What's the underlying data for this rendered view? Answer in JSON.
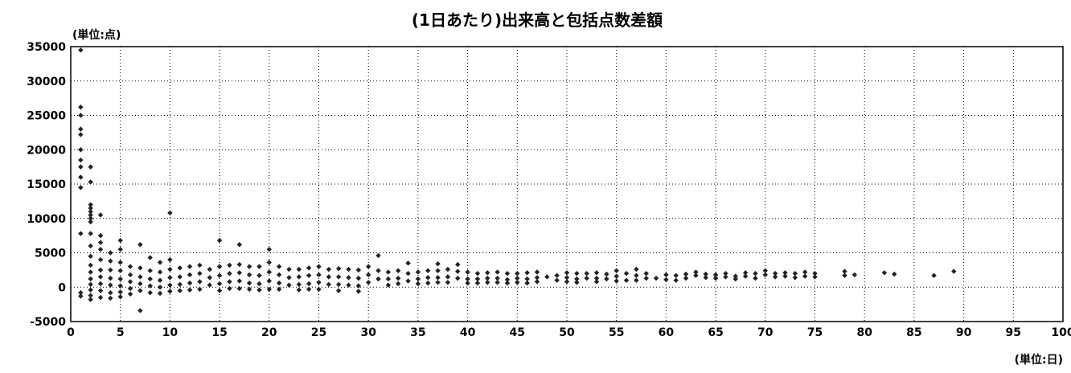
{
  "chart_data": {
    "type": "scatter",
    "title": "(1日あたり)出来高と包括点数差額",
    "y_unit_label": "(単位:点)",
    "x_unit_label": "(単位:日)",
    "xlim": [
      0,
      100
    ],
    "ylim": [
      -5000,
      35000
    ],
    "x_ticks": [
      0,
      5,
      10,
      15,
      20,
      25,
      30,
      35,
      40,
      45,
      50,
      55,
      60,
      65,
      70,
      75,
      80,
      85,
      90,
      95,
      100
    ],
    "y_ticks": [
      35000,
      30000,
      25000,
      20000,
      15000,
      10000,
      5000,
      0,
      -5000
    ],
    "grid": true,
    "marker_color": "#222222",
    "points": [
      [
        1,
        34500
      ],
      [
        1,
        26200
      ],
      [
        1,
        25000
      ],
      [
        1,
        23000
      ],
      [
        1,
        22200
      ],
      [
        1,
        20000
      ],
      [
        1,
        18500
      ],
      [
        1,
        17500
      ],
      [
        1,
        16000
      ],
      [
        1,
        14500
      ],
      [
        1,
        7800
      ],
      [
        1,
        -800
      ],
      [
        1,
        -1300
      ],
      [
        2,
        17500
      ],
      [
        2,
        15300
      ],
      [
        2,
        12000
      ],
      [
        2,
        11500
      ],
      [
        2,
        11000
      ],
      [
        2,
        10500
      ],
      [
        2,
        10000
      ],
      [
        2,
        9500
      ],
      [
        2,
        7800
      ],
      [
        2,
        6000
      ],
      [
        2,
        4500
      ],
      [
        2,
        3200
      ],
      [
        2,
        2200
      ],
      [
        2,
        1200
      ],
      [
        2,
        400
      ],
      [
        2,
        -400
      ],
      [
        2,
        -1200
      ],
      [
        2,
        -1800
      ],
      [
        3,
        10500
      ],
      [
        3,
        7500
      ],
      [
        3,
        6500
      ],
      [
        3,
        5500
      ],
      [
        3,
        4000
      ],
      [
        3,
        2500
      ],
      [
        3,
        1500
      ],
      [
        3,
        500
      ],
      [
        3,
        -500
      ],
      [
        3,
        -1500
      ],
      [
        4,
        5000
      ],
      [
        4,
        3800
      ],
      [
        4,
        2500
      ],
      [
        4,
        1300
      ],
      [
        4,
        300
      ],
      [
        4,
        -800
      ],
      [
        4,
        -1600
      ],
      [
        5,
        6800
      ],
      [
        5,
        5500
      ],
      [
        5,
        3600
      ],
      [
        5,
        2400
      ],
      [
        5,
        1200
      ],
      [
        5,
        200
      ],
      [
        5,
        -700
      ],
      [
        5,
        -1400
      ],
      [
        6,
        3000
      ],
      [
        6,
        1800
      ],
      [
        6,
        800
      ],
      [
        6,
        -200
      ],
      [
        6,
        -1000
      ],
      [
        7,
        6200
      ],
      [
        7,
        2800
      ],
      [
        7,
        1500
      ],
      [
        7,
        500
      ],
      [
        7,
        -500
      ],
      [
        7,
        -3400
      ],
      [
        8,
        4300
      ],
      [
        8,
        2400
      ],
      [
        8,
        1200
      ],
      [
        8,
        200
      ],
      [
        8,
        -800
      ],
      [
        9,
        3600
      ],
      [
        9,
        2200
      ],
      [
        9,
        1000
      ],
      [
        9,
        0
      ],
      [
        9,
        -900
      ],
      [
        10,
        10800
      ],
      [
        10,
        4000
      ],
      [
        10,
        2600
      ],
      [
        10,
        1400
      ],
      [
        10,
        300
      ],
      [
        10,
        -600
      ],
      [
        11,
        2800
      ],
      [
        11,
        1500
      ],
      [
        11,
        400
      ],
      [
        11,
        -500
      ],
      [
        12,
        3000
      ],
      [
        12,
        1800
      ],
      [
        12,
        600
      ],
      [
        12,
        -400
      ],
      [
        13,
        3200
      ],
      [
        13,
        2000
      ],
      [
        13,
        800
      ],
      [
        13,
        -300
      ],
      [
        14,
        2600
      ],
      [
        14,
        1400
      ],
      [
        14,
        300
      ],
      [
        15,
        6800
      ],
      [
        15,
        3000
      ],
      [
        15,
        1700
      ],
      [
        15,
        500
      ],
      [
        15,
        -500
      ],
      [
        16,
        3200
      ],
      [
        16,
        2000
      ],
      [
        16,
        800
      ],
      [
        16,
        -200
      ],
      [
        17,
        6200
      ],
      [
        17,
        3300
      ],
      [
        17,
        2100
      ],
      [
        17,
        900
      ],
      [
        17,
        -200
      ],
      [
        18,
        3000
      ],
      [
        18,
        1800
      ],
      [
        18,
        600
      ],
      [
        18,
        -300
      ],
      [
        19,
        3000
      ],
      [
        19,
        1700
      ],
      [
        19,
        500
      ],
      [
        19,
        -400
      ],
      [
        20,
        5500
      ],
      [
        20,
        3600
      ],
      [
        20,
        2200
      ],
      [
        20,
        900
      ],
      [
        20,
        -300
      ],
      [
        21,
        3000
      ],
      [
        21,
        1800
      ],
      [
        21,
        600
      ],
      [
        21,
        -300
      ],
      [
        22,
        2600
      ],
      [
        22,
        1400
      ],
      [
        22,
        300
      ],
      [
        23,
        2600
      ],
      [
        23,
        1500
      ],
      [
        23,
        400
      ],
      [
        23,
        -400
      ],
      [
        24,
        2800
      ],
      [
        24,
        1700
      ],
      [
        24,
        500
      ],
      [
        24,
        -300
      ],
      [
        25,
        3000
      ],
      [
        25,
        1800
      ],
      [
        25,
        700
      ],
      [
        25,
        -300
      ],
      [
        26,
        2600
      ],
      [
        26,
        1500
      ],
      [
        26,
        400
      ],
      [
        27,
        2700
      ],
      [
        27,
        1500
      ],
      [
        27,
        400
      ],
      [
        27,
        -500
      ],
      [
        28,
        2600
      ],
      [
        28,
        1400
      ],
      [
        28,
        300
      ],
      [
        29,
        2500
      ],
      [
        29,
        1300
      ],
      [
        29,
        200
      ],
      [
        29,
        -600
      ],
      [
        30,
        3000
      ],
      [
        30,
        1800
      ],
      [
        30,
        700
      ],
      [
        31,
        4600
      ],
      [
        31,
        2400
      ],
      [
        31,
        1200
      ],
      [
        32,
        2200
      ],
      [
        32,
        1200
      ],
      [
        32,
        300
      ],
      [
        33,
        2400
      ],
      [
        33,
        1300
      ],
      [
        33,
        500
      ],
      [
        34,
        3500
      ],
      [
        34,
        2000
      ],
      [
        34,
        900
      ],
      [
        35,
        2200
      ],
      [
        35,
        1200
      ],
      [
        35,
        500
      ],
      [
        36,
        2400
      ],
      [
        36,
        1400
      ],
      [
        36,
        600
      ],
      [
        37,
        3400
      ],
      [
        37,
        2400
      ],
      [
        37,
        1400
      ],
      [
        37,
        700
      ],
      [
        38,
        2600
      ],
      [
        38,
        1500
      ],
      [
        38,
        700
      ],
      [
        39,
        3300
      ],
      [
        39,
        2300
      ],
      [
        39,
        1300
      ],
      [
        40,
        2200
      ],
      [
        40,
        1200
      ],
      [
        40,
        600
      ],
      [
        41,
        2000
      ],
      [
        41,
        1200
      ],
      [
        41,
        600
      ],
      [
        42,
        2100
      ],
      [
        42,
        1300
      ],
      [
        42,
        700
      ],
      [
        43,
        2200
      ],
      [
        43,
        1300
      ],
      [
        43,
        700
      ],
      [
        44,
        2000
      ],
      [
        44,
        1100
      ],
      [
        44,
        600
      ],
      [
        45,
        2000
      ],
      [
        45,
        1300
      ],
      [
        45,
        700
      ],
      [
        46,
        2100
      ],
      [
        46,
        1200
      ],
      [
        46,
        600
      ],
      [
        47,
        2200
      ],
      [
        47,
        1400
      ],
      [
        47,
        800
      ],
      [
        48,
        1500
      ],
      [
        49,
        1700
      ],
      [
        49,
        1000
      ],
      [
        50,
        2100
      ],
      [
        50,
        1400
      ],
      [
        50,
        800
      ],
      [
        51,
        2000
      ],
      [
        51,
        1200
      ],
      [
        51,
        700
      ],
      [
        52,
        2000
      ],
      [
        52,
        1300
      ],
      [
        53,
        2100
      ],
      [
        53,
        1300
      ],
      [
        53,
        800
      ],
      [
        54,
        1900
      ],
      [
        54,
        1200
      ],
      [
        55,
        2400
      ],
      [
        55,
        1600
      ],
      [
        55,
        900
      ],
      [
        56,
        2000
      ],
      [
        56,
        1000
      ],
      [
        57,
        2600
      ],
      [
        57,
        1700
      ],
      [
        57,
        1000
      ],
      [
        58,
        2000
      ],
      [
        58,
        1300
      ],
      [
        59,
        1300
      ],
      [
        60,
        1800
      ],
      [
        60,
        1100
      ],
      [
        61,
        1700
      ],
      [
        61,
        1000
      ],
      [
        62,
        1900
      ],
      [
        62,
        1300
      ],
      [
        63,
        2200
      ],
      [
        63,
        1700
      ],
      [
        64,
        1900
      ],
      [
        64,
        1400
      ],
      [
        65,
        1800
      ],
      [
        65,
        1300
      ],
      [
        66,
        2000
      ],
      [
        66,
        1500
      ],
      [
        67,
        1600
      ],
      [
        67,
        1200
      ],
      [
        68,
        2100
      ],
      [
        68,
        1600
      ],
      [
        69,
        2000
      ],
      [
        69,
        1300
      ],
      [
        70,
        2400
      ],
      [
        70,
        1800
      ],
      [
        71,
        2000
      ],
      [
        71,
        1500
      ],
      [
        72,
        2100
      ],
      [
        72,
        1600
      ],
      [
        73,
        2000
      ],
      [
        73,
        1400
      ],
      [
        74,
        2200
      ],
      [
        74,
        1600
      ],
      [
        75,
        2000
      ],
      [
        75,
        1500
      ],
      [
        78,
        2300
      ],
      [
        78,
        1700
      ],
      [
        79,
        1800
      ],
      [
        82,
        2100
      ],
      [
        83,
        1900
      ],
      [
        87,
        1700
      ],
      [
        89,
        2300
      ]
    ]
  }
}
